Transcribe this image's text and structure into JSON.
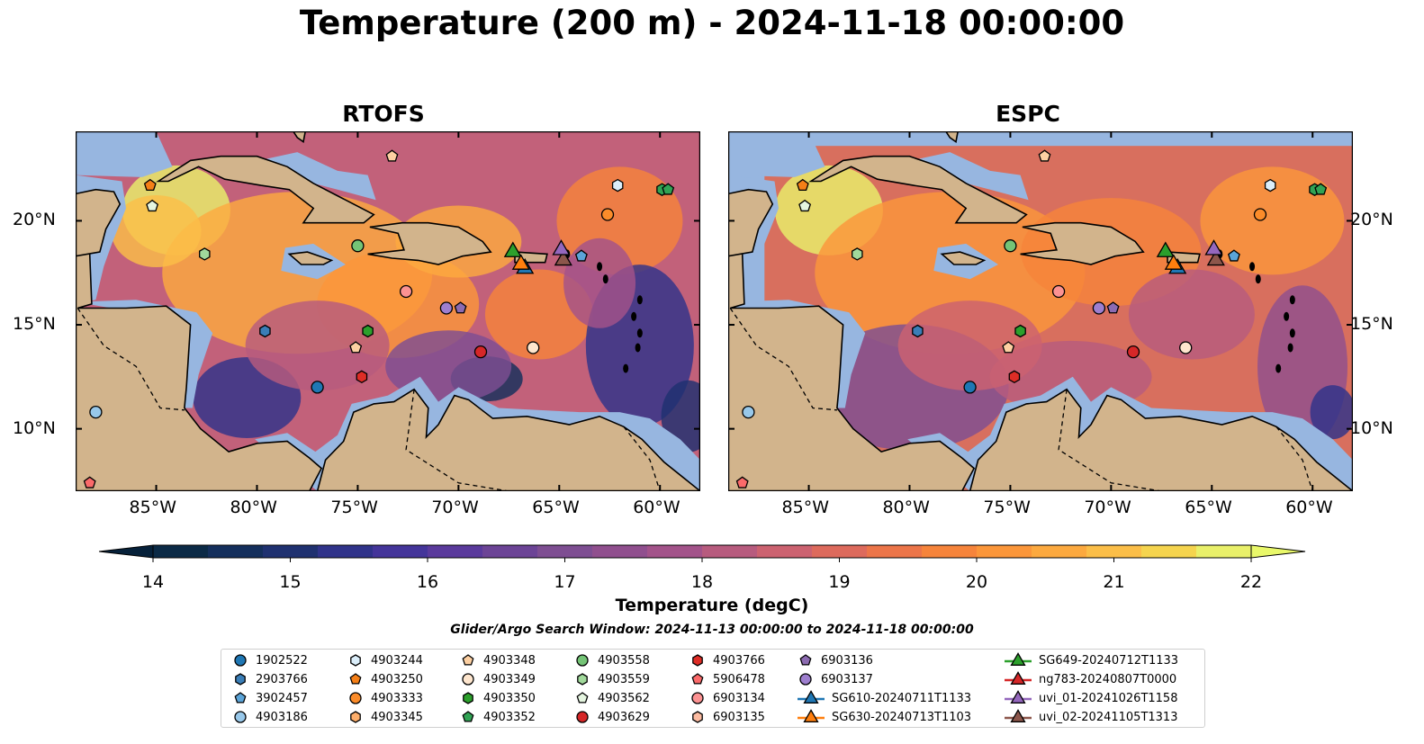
{
  "title": "Temperature (200 m) - 2024-11-18 00:00:00",
  "panels": [
    {
      "id": "rtofs",
      "title": "RTOFS"
    },
    {
      "id": "espc",
      "title": "ESPC"
    }
  ],
  "map": {
    "lon_range": [
      -89,
      -58
    ],
    "lat_range": [
      7,
      24.3
    ],
    "x_ticks": [
      "85°W",
      "80°W",
      "75°W",
      "70°W",
      "65°W",
      "60°W"
    ],
    "x_tick_values": [
      -85,
      -80,
      -75,
      -70,
      -65,
      -60
    ],
    "y_ticks": [
      "20°N",
      "15°N",
      "10°N"
    ],
    "y_tick_values": [
      20,
      15,
      10
    ],
    "land_color": "#d2b48c",
    "shelf_color": "#97b6e0"
  },
  "colorbar": {
    "label": "Temperature (degC)",
    "ticks": [
      "14",
      "15",
      "16",
      "17",
      "18",
      "19",
      "20",
      "21",
      "22"
    ],
    "tick_values": [
      14,
      15,
      16,
      17,
      18,
      19,
      20,
      21,
      22
    ],
    "range": [
      14,
      22
    ],
    "extend": "both",
    "colors": [
      "#0b2a46",
      "#142f5c",
      "#1f3170",
      "#30338a",
      "#44359a",
      "#5a3a9c",
      "#6c4496",
      "#7e4e92",
      "#904f8e",
      "#a3538a",
      "#b75b7e",
      "#cc6270",
      "#dd6a5c",
      "#ec7549",
      "#f6843b",
      "#fb963a",
      "#fca93f",
      "#fbbe48",
      "#f5d44e",
      "#e9f06a"
    ]
  },
  "search_window": "Glider/Argo Search Window: 2024-11-13 00:00:00 to 2024-11-18 00:00:00",
  "legend": {
    "columns": [
      [
        {
          "label": "1902522",
          "marker": "circle",
          "color": "#1f77b4"
        },
        {
          "label": "2903766",
          "marker": "hexagon",
          "color": "#3a7eb7"
        },
        {
          "label": "3902457",
          "marker": "pentagon",
          "color": "#5ba4d8"
        },
        {
          "label": "4903186",
          "marker": "circle",
          "color": "#98c8ea"
        }
      ],
      [
        {
          "label": "4903244",
          "marker": "hexagon",
          "color": "#dbeefa"
        },
        {
          "label": "4903250",
          "marker": "pentagon",
          "color": "#f57f17"
        },
        {
          "label": "4903333",
          "marker": "circle",
          "color": "#fb8c2a"
        },
        {
          "label": "4903345",
          "marker": "hexagon",
          "color": "#fdae6b"
        }
      ],
      [
        {
          "label": "4903348",
          "marker": "pentagon",
          "color": "#fdd0a2"
        },
        {
          "label": "4903349",
          "marker": "circle",
          "color": "#fee6ce"
        },
        {
          "label": "4903350",
          "marker": "hexagon",
          "color": "#2ca02c"
        },
        {
          "label": "4903352",
          "marker": "pentagon",
          "color": "#31a354"
        }
      ],
      [
        {
          "label": "4903558",
          "marker": "circle",
          "color": "#74c476"
        },
        {
          "label": "4903559",
          "marker": "hexagon",
          "color": "#a1d99b"
        },
        {
          "label": "4903562",
          "marker": "pentagon",
          "color": "#e5f5e0"
        },
        {
          "label": "4903629",
          "marker": "circle",
          "color": "#d62728"
        }
      ],
      [
        {
          "label": "4903766",
          "marker": "hexagon",
          "color": "#de2d26"
        },
        {
          "label": "5906478",
          "marker": "pentagon",
          "color": "#fb6a6a"
        },
        {
          "label": "6903134",
          "marker": "circle",
          "color": "#fc9292"
        },
        {
          "label": "6903135",
          "marker": "hexagon",
          "color": "#fcbba1"
        }
      ],
      [
        {
          "label": "6903136",
          "marker": "pentagon",
          "color": "#8c6bb1"
        },
        {
          "label": "6903137",
          "marker": "circle",
          "color": "#9e7fcf"
        },
        {
          "label": "SG610-20240711T1133",
          "marker": "triangle-line",
          "color": "#1f77b4"
        },
        {
          "label": "SG630-20240713T1103",
          "marker": "triangle-line",
          "color": "#ff7f0e"
        }
      ],
      [
        {
          "label": "SG649-20240712T1133",
          "marker": "triangle-line",
          "color": "#2ca02c"
        },
        {
          "label": "ng783-20240807T0000",
          "marker": "triangle-line",
          "color": "#d62728"
        },
        {
          "label": "uvi_01-20241026T1158",
          "marker": "triangle-line",
          "color": "#9467bd"
        },
        {
          "label": "uvi_02-20241105T1313",
          "marker": "triangle-line",
          "color": "#8c564b"
        }
      ]
    ]
  },
  "floats": [
    {
      "lon": -88.3,
      "lat": 7.4,
      "marker": "pentagon",
      "color": "#fb6a6a"
    },
    {
      "lon": -88.0,
      "lat": 10.8,
      "marker": "circle",
      "color": "#98c8ea"
    },
    {
      "lon": -85.3,
      "lat": 21.7,
      "marker": "pentagon",
      "color": "#f57f17"
    },
    {
      "lon": -85.2,
      "lat": 20.7,
      "marker": "pentagon",
      "color": "#e5f5e0"
    },
    {
      "lon": -82.6,
      "lat": 18.4,
      "marker": "hexagon",
      "color": "#a1d99b"
    },
    {
      "lon": -79.6,
      "lat": 14.7,
      "marker": "hexagon",
      "color": "#3a7eb7"
    },
    {
      "lon": -77.0,
      "lat": 12.0,
      "marker": "circle",
      "color": "#1f77b4"
    },
    {
      "lon": -75.0,
      "lat": 18.8,
      "marker": "circle",
      "color": "#74c476"
    },
    {
      "lon": -75.1,
      "lat": 13.9,
      "marker": "pentagon",
      "color": "#fdd0a2"
    },
    {
      "lon": -74.5,
      "lat": 14.7,
      "marker": "hexagon",
      "color": "#2ca02c"
    },
    {
      "lon": -74.8,
      "lat": 12.5,
      "marker": "hexagon",
      "color": "#de2d26"
    },
    {
      "lon": -73.3,
      "lat": 23.1,
      "marker": "pentagon",
      "color": "#fdd0a2"
    },
    {
      "lon": -72.6,
      "lat": 16.6,
      "marker": "circle",
      "color": "#fc9292"
    },
    {
      "lon": -70.6,
      "lat": 15.8,
      "marker": "circle",
      "color": "#9e7fcf"
    },
    {
      "lon": -69.9,
      "lat": 15.8,
      "marker": "pentagon",
      "color": "#8c6bb1"
    },
    {
      "lon": -68.9,
      "lat": 13.7,
      "marker": "circle",
      "color": "#d62728"
    },
    {
      "lon": -66.3,
      "lat": 13.9,
      "marker": "circle",
      "color": "#fee6ce"
    },
    {
      "lon": -62.6,
      "lat": 20.3,
      "marker": "circle",
      "color": "#fb8c2a"
    },
    {
      "lon": -62.1,
      "lat": 21.7,
      "marker": "hexagon",
      "color": "#dbeefa"
    },
    {
      "lon": -63.9,
      "lat": 18.3,
      "marker": "pentagon",
      "color": "#5ba4d8"
    },
    {
      "lon": -59.9,
      "lat": 21.5,
      "marker": "hexagon",
      "color": "#31a354"
    },
    {
      "lon": -59.6,
      "lat": 21.5,
      "marker": "pentagon",
      "color": "#31a354"
    }
  ],
  "gliders": [
    {
      "lon": -67.3,
      "lat": 18.5,
      "color": "#2ca02c"
    },
    {
      "lon": -66.7,
      "lat": 17.7,
      "color": "#1f77b4"
    },
    {
      "lon": -66.9,
      "lat": 17.9,
      "color": "#ff7f0e"
    },
    {
      "lon": -64.8,
      "lat": 18.1,
      "color": "#8c564b"
    },
    {
      "lon": -64.9,
      "lat": 18.6,
      "color": "#9467bd"
    }
  ]
}
